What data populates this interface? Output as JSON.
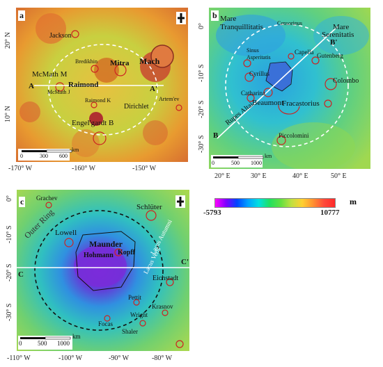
{
  "panels": {
    "a": {
      "letter": "a",
      "features": [
        "Jackson",
        "Bredikhin",
        "Mitra",
        "Mach",
        "McMath M",
        "Raimond",
        "McMath J",
        "Raimond K",
        "Dirichlet",
        "Artem'ev",
        "Engel'gardt B"
      ],
      "profile": {
        "start": "A",
        "end": "A'"
      },
      "scale": {
        "ticks": [
          "0",
          "300",
          "600"
        ],
        "unit": "km"
      },
      "x_ticks": [
        "-170° W",
        "-160° W",
        "-150° W"
      ],
      "y_ticks": [
        "20° N",
        "10° N"
      ]
    },
    "b": {
      "letter": "b",
      "features": [
        "Mare",
        "Tranquillitatis",
        "Censorinus",
        "Mare",
        "Serenitatis",
        "Sinus",
        "Asperitatis",
        "Capella",
        "Gutenberg",
        "Cyrillus",
        "Colombo",
        "Catharina",
        "Beaumont",
        "Fracastorius",
        "Rupes Altai",
        "Piccolomini"
      ],
      "profile": {
        "start": "B",
        "end": "B'"
      },
      "scale": {
        "ticks": [
          "0",
          "500",
          "1000"
        ],
        "unit": "km"
      },
      "x_ticks": [
        "20° E",
        "30° E",
        "40° E",
        "50° E"
      ],
      "y_ticks": [
        "0°",
        "-10° S",
        "-20° S",
        "-30° S"
      ]
    },
    "c": {
      "letter": "c",
      "features": [
        "Grachev",
        "Schlüter",
        "Outer Ring",
        "Lowell",
        "Maunder",
        "Hohmann",
        "Kopff",
        "Lacus Autumni",
        "Lacus Veris",
        "Eichstadt",
        "Pettit",
        "Krasnov",
        "Wright",
        "Focas",
        "Shaler"
      ],
      "profile": {
        "start": "C",
        "end": "C'"
      },
      "scale": {
        "ticks": [
          "0",
          "500",
          "1000"
        ],
        "unit": "km"
      },
      "x_ticks": [
        "-110° W",
        "-100° W",
        "-90° W",
        "-80° W"
      ],
      "y_ticks": [
        "0°",
        "-10° S",
        "-20° S",
        "-30° S"
      ]
    }
  },
  "legend": {
    "min": "-5793",
    "max": "10777",
    "unit": "m"
  },
  "colors": {
    "low": "#ff00ff",
    "mid": "#00e0e0",
    "high": "#ff2a2a",
    "crater_outline": "#cc2222",
    "ring_outline": "#ffffff",
    "basin_outline": "#000000"
  }
}
